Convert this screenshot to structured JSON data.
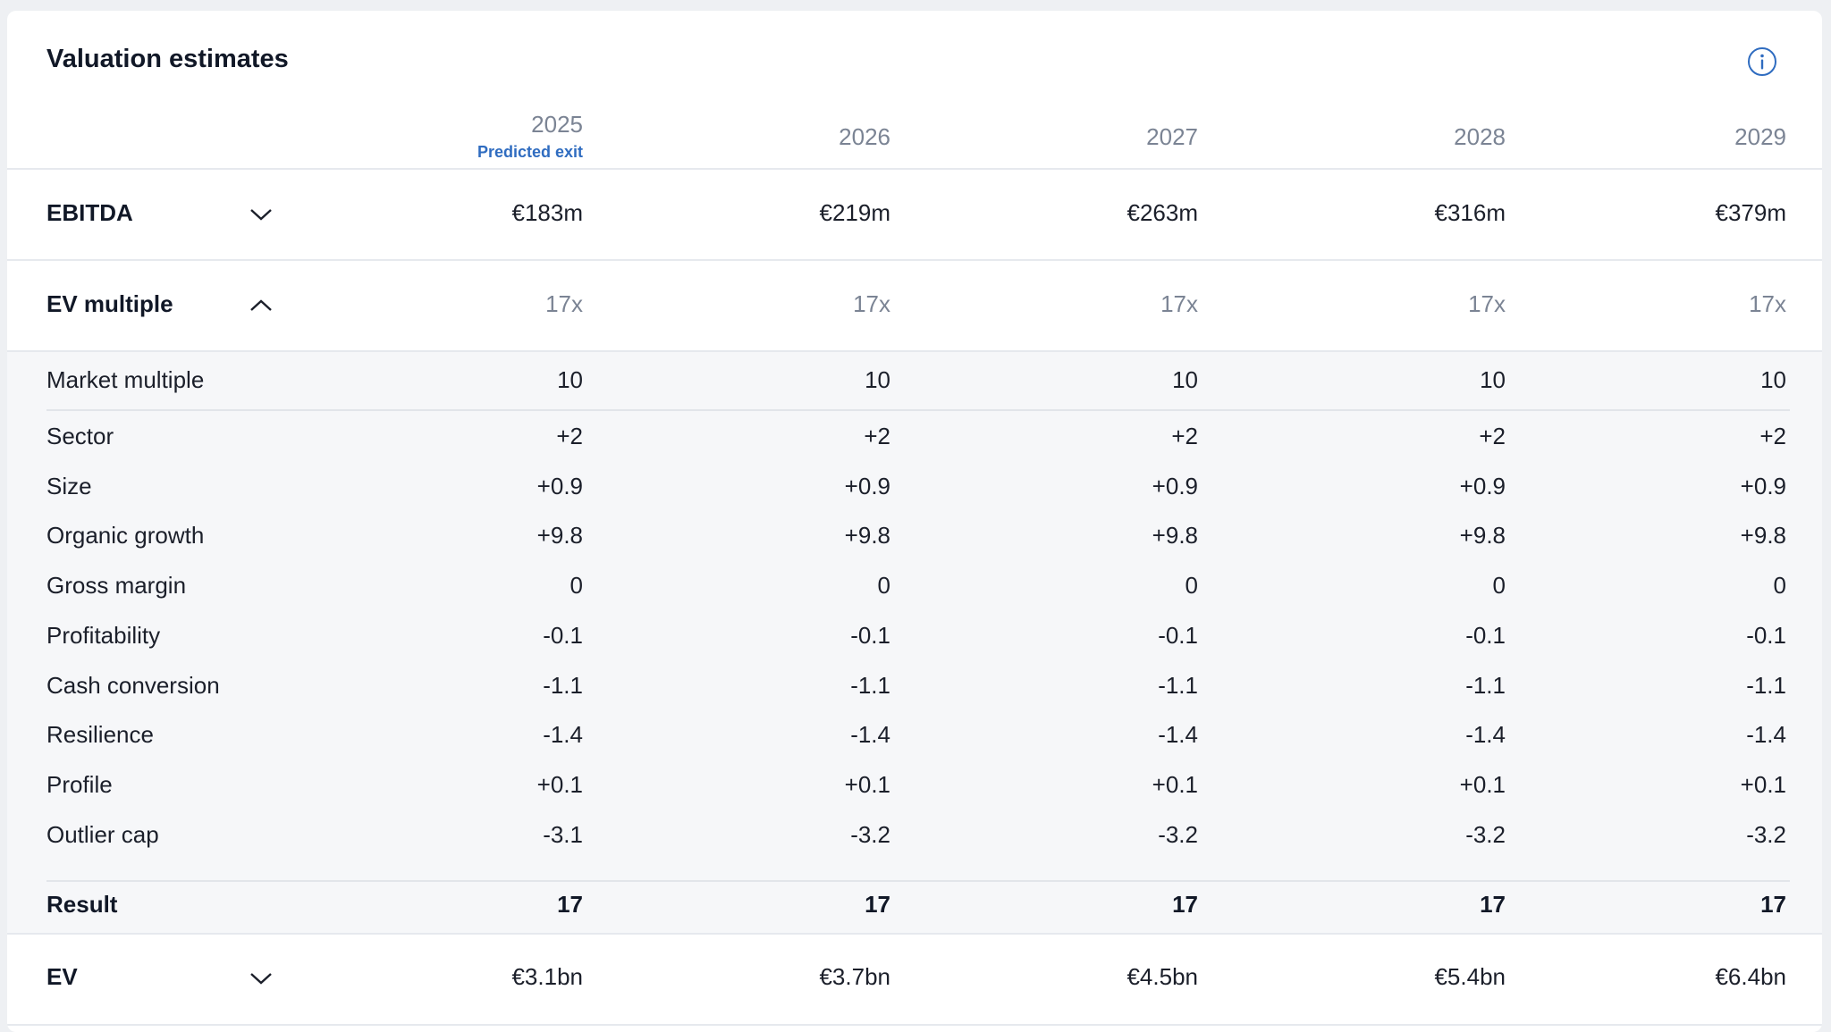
{
  "title": "Valuation estimates",
  "info_icon": "info-icon",
  "years": [
    "2025",
    "2026",
    "2027",
    "2028",
    "2029"
  ],
  "predicted_exit_label": "Predicted exit",
  "ebitda": {
    "label": "EBITDA",
    "values": [
      "€183m",
      "€219m",
      "€263m",
      "€316m",
      "€379m"
    ],
    "chevron": "chevron-down-icon"
  },
  "ev_multiple": {
    "label": "EV multiple",
    "values": [
      "17x",
      "17x",
      "17x",
      "17x",
      "17x"
    ],
    "chevron": "chevron-up-icon"
  },
  "breakdown": {
    "market_multiple": {
      "label": "Market multiple",
      "values": [
        "10",
        "10",
        "10",
        "10",
        "10"
      ]
    },
    "rows": [
      {
        "label": "Sector",
        "values": [
          "+2",
          "+2",
          "+2",
          "+2",
          "+2"
        ]
      },
      {
        "label": "Size",
        "values": [
          "+0.9",
          "+0.9",
          "+0.9",
          "+0.9",
          "+0.9"
        ]
      },
      {
        "label": "Organic growth",
        "values": [
          "+9.8",
          "+9.8",
          "+9.8",
          "+9.8",
          "+9.8"
        ]
      },
      {
        "label": "Gross margin",
        "values": [
          "0",
          "0",
          "0",
          "0",
          "0"
        ]
      },
      {
        "label": "Profitability",
        "values": [
          "-0.1",
          "-0.1",
          "-0.1",
          "-0.1",
          "-0.1"
        ]
      },
      {
        "label": "Cash conversion",
        "values": [
          "-1.1",
          "-1.1",
          "-1.1",
          "-1.1",
          "-1.1"
        ]
      },
      {
        "label": "Resilience",
        "values": [
          "-1.4",
          "-1.4",
          "-1.4",
          "-1.4",
          "-1.4"
        ]
      },
      {
        "label": "Profile",
        "values": [
          "+0.1",
          "+0.1",
          "+0.1",
          "+0.1",
          "+0.1"
        ]
      },
      {
        "label": "Outlier cap",
        "values": [
          "-3.1",
          "-3.2",
          "-3.2",
          "-3.2",
          "-3.2"
        ]
      }
    ],
    "result": {
      "label": "Result",
      "values": [
        "17",
        "17",
        "17",
        "17",
        "17"
      ]
    }
  },
  "ev": {
    "label": "EV",
    "values": [
      "€3.1bn",
      "€3.7bn",
      "€4.5bn",
      "€5.4bn",
      "€6.4bn"
    ],
    "chevron": "chevron-down-icon"
  },
  "colors": {
    "accent": "#2f6cc0",
    "muted_text": "#7b8494",
    "panel_bg": "#f6f7f9"
  }
}
